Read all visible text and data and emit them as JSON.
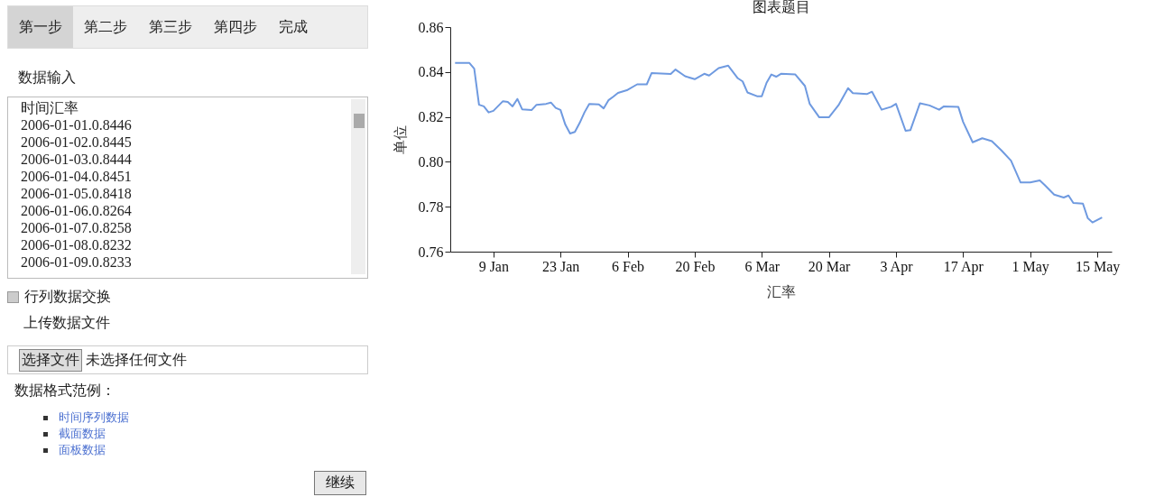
{
  "chart_data": [
    {
      "type": "other",
      "annotations": [
        "第一步",
        "第二步",
        "第三步",
        "第四步",
        "完成",
        "数据输入",
        "时间汇率",
        "2006-01-01.0.8446",
        "2006-01-02.0.8445",
        "2006-01-03.0.8444",
        "2006-01-04.0.8451",
        "2006-01-05.0.8418",
        "2006-01-06.0.8264",
        "2006-01-07.0.8258",
        "2006-01-08.0.8232",
        "2006-01-09.0.8233",
        "行列数据交换",
        "上传数据文件",
        "选择文件",
        "未选择任何文件",
        "数据格式范例：",
        "时间序列数据",
        "截面数据",
        "面板数据",
        "继续"
      ]
    },
    {
      "type": "line",
      "title": "图表题目",
      "xlabel": "汇率",
      "ylabel": "单位",
      "x": [
        "2006-01-01",
        "2006-01-04",
        "2006-01-05",
        "2006-01-06",
        "2006-01-07",
        "2006-01-08",
        "2006-01-09",
        "2006-01-11",
        "2006-01-12",
        "2006-01-13",
        "2006-01-14",
        "2006-01-15",
        "2006-01-17",
        "2006-01-18",
        "2006-01-20",
        "2006-01-21",
        "2006-01-22",
        "2006-01-23",
        "2006-01-24",
        "2006-01-25",
        "2006-01-26",
        "2006-01-27",
        "2006-01-28",
        "2006-01-29",
        "2006-01-31",
        "2006-02-01",
        "2006-02-02",
        "2006-02-03",
        "2006-02-04",
        "2006-02-06",
        "2006-02-08",
        "2006-02-10",
        "2006-02-11",
        "2006-02-15",
        "2006-02-16",
        "2006-02-18",
        "2006-02-20",
        "2006-02-22",
        "2006-02-23",
        "2006-02-25",
        "2006-02-27",
        "2006-03-01",
        "2006-03-02",
        "2006-03-03",
        "2006-03-05",
        "2006-03-06",
        "2006-03-07",
        "2006-03-08",
        "2006-03-09",
        "2006-03-10",
        "2006-03-13",
        "2006-03-15",
        "2006-03-16",
        "2006-03-18",
        "2006-03-20",
        "2006-03-22",
        "2006-03-24",
        "2006-03-25",
        "2006-03-28",
        "2006-03-29",
        "2006-03-31",
        "2006-04-02",
        "2006-04-03",
        "2006-04-05",
        "2006-04-06",
        "2006-04-08",
        "2006-04-10",
        "2006-04-12",
        "2006-04-13",
        "2006-04-16",
        "2006-04-17",
        "2006-04-19",
        "2006-04-21",
        "2006-04-23",
        "2006-04-25",
        "2006-04-27",
        "2006-04-29",
        "2006-05-01",
        "2006-05-03",
        "2006-05-04",
        "2006-05-06",
        "2006-05-08",
        "2006-05-09",
        "2006-05-10",
        "2006-05-12",
        "2006-05-13",
        "2006-05-14",
        "2006-05-16"
      ],
      "series": [
        {
          "color": "#6f9ae0",
          "values": [
            0.844,
            0.844,
            0.8415,
            0.8254,
            0.8247,
            0.822,
            0.8227,
            0.827,
            0.8267,
            0.8247,
            0.828,
            0.8234,
            0.8231,
            0.8254,
            0.8258,
            0.8264,
            0.824,
            0.8231,
            0.8166,
            0.8126,
            0.8133,
            0.8173,
            0.822,
            0.8258,
            0.8256,
            0.8238,
            0.8274,
            0.829,
            0.8307,
            0.832,
            0.8345,
            0.8345,
            0.8395,
            0.8391,
            0.8411,
            0.8381,
            0.8368,
            0.8392,
            0.8384,
            0.8417,
            0.8428,
            0.8372,
            0.8358,
            0.8309,
            0.8292,
            0.8292,
            0.8352,
            0.8389,
            0.8379,
            0.8392,
            0.8389,
            0.8338,
            0.8258,
            0.8198,
            0.8198,
            0.8252,
            0.8328,
            0.8306,
            0.8302,
            0.8312,
            0.8232,
            0.8245,
            0.8258,
            0.8138,
            0.8141,
            0.8261,
            0.8251,
            0.8232,
            0.8247,
            0.8245,
            0.8178,
            0.8087,
            0.8105,
            0.8092,
            0.8051,
            0.8005,
            0.7908,
            0.7908,
            0.7917,
            0.7897,
            0.7854,
            0.7841,
            0.785,
            0.7817,
            0.7814,
            0.775,
            0.773,
            0.7752
          ]
        }
      ],
      "xlim": [
        "2005-12-31",
        "2006-05-18"
      ],
      "xticks": [
        {
          "value": "2006-01-09",
          "label": "9 Jan"
        },
        {
          "value": "2006-01-23",
          "label": "23 Jan"
        },
        {
          "value": "2006-02-06",
          "label": "6 Feb"
        },
        {
          "value": "2006-02-20",
          "label": "20 Feb"
        },
        {
          "value": "2006-03-06",
          "label": "6 Mar"
        },
        {
          "value": "2006-03-20",
          "label": "20 Mar"
        },
        {
          "value": "2006-04-03",
          "label": "3 Apr"
        },
        {
          "value": "2006-04-17",
          "label": "17 Apr"
        },
        {
          "value": "2006-05-01",
          "label": "1 May"
        },
        {
          "value": "2006-05-15",
          "label": "15 May"
        }
      ],
      "ylim": [
        0.76,
        0.86
      ],
      "yticks": [
        0.76,
        0.78,
        {
          "value": 0.8,
          "label": "0.80"
        },
        0.82,
        0.84,
        0.86
      ],
      "grid": false,
      "marker": "none",
      "line_style": "solid"
    }
  ]
}
